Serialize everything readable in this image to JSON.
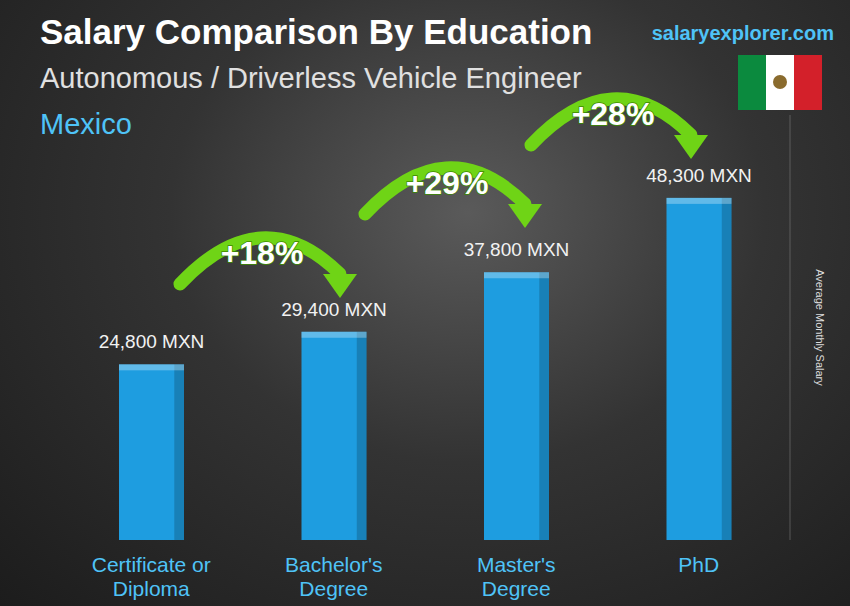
{
  "chart_data": {
    "type": "bar",
    "title": "Salary Comparison By Education",
    "subtitle": "Autonomous / Driverless Vehicle Engineer",
    "location": "Mexico",
    "brand": "salaryexplorer.com",
    "y_label": "Average Monthly Salary",
    "categories": [
      "Certificate or Diploma",
      "Bachelor's Degree",
      "Master's Degree",
      "PhD"
    ],
    "values": [
      24800,
      29400,
      37800,
      48300
    ],
    "value_labels": [
      "24,800 MXN",
      "29,400 MXN",
      "37,800 MXN",
      "48,300 MXN"
    ],
    "annotations": [
      "+18%",
      "+29%",
      "+28%"
    ],
    "color": "#1e9de0",
    "ylim": [
      0,
      60000
    ],
    "data_labels": true,
    "tick_labels": "x",
    "grid": false
  }
}
